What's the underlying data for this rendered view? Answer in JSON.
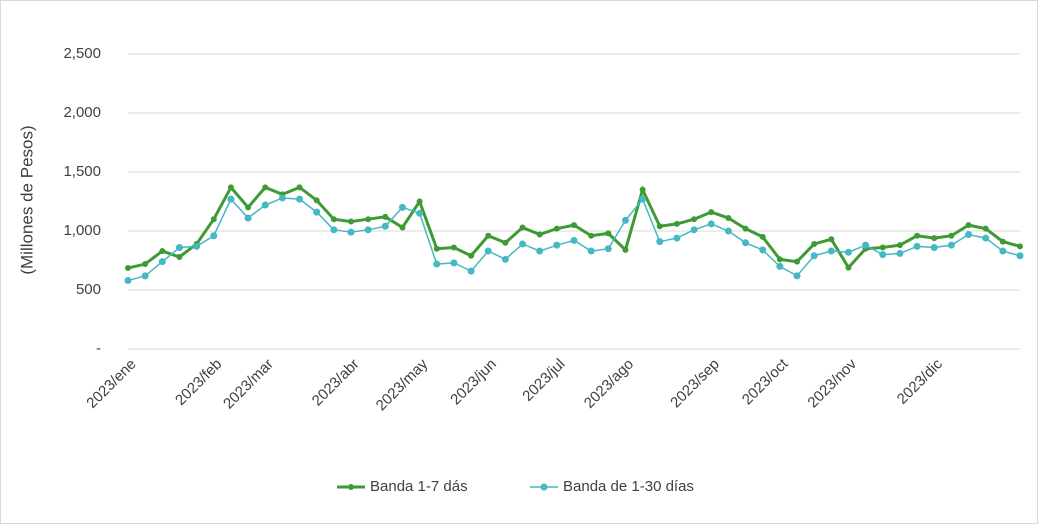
{
  "chart_data": {
    "type": "line",
    "y_label": "(Millones de Pesos)",
    "categories": [
      "2023/ene",
      null,
      null,
      null,
      null,
      "2023/feb",
      null,
      null,
      "2023/mar",
      null,
      null,
      null,
      null,
      "2023/abr",
      null,
      null,
      null,
      "2023/may",
      null,
      null,
      null,
      "2023/jun",
      null,
      null,
      null,
      "2023/jul",
      null,
      null,
      null,
      "2023/ago",
      null,
      null,
      null,
      null,
      "2023/sep",
      null,
      null,
      null,
      "2023/oct",
      null,
      null,
      null,
      "2023/nov",
      null,
      null,
      null,
      null,
      "2023/dic",
      null,
      null,
      null,
      null,
      null
    ],
    "series": [
      {
        "name": "Banda 1-7 dás",
        "color": "#3e9a34",
        "values": [
          686,
          720,
          830,
          780,
          890,
          1100,
          1370,
          1200,
          1370,
          1310,
          1370,
          1260,
          1100,
          1080,
          1100,
          1120,
          1030,
          1250,
          850,
          860,
          790,
          960,
          900,
          1030,
          970,
          1020,
          1050,
          960,
          980,
          840,
          1350,
          1040,
          1060,
          1100,
          1160,
          1110,
          1020,
          950,
          760,
          740,
          890,
          930,
          690,
          850,
          860,
          880,
          960,
          940,
          960,
          1050,
          1020,
          910,
          870
        ]
      },
      {
        "name": "Banda de 1-30 días",
        "color": "#45b8c4",
        "values": [
          580,
          620,
          740,
          860,
          870,
          960,
          1270,
          1110,
          1220,
          1280,
          1270,
          1160,
          1010,
          990,
          1010,
          1040,
          1200,
          1150,
          720,
          730,
          660,
          830,
          760,
          890,
          830,
          880,
          920,
          830,
          850,
          1090,
          1270,
          910,
          940,
          1010,
          1060,
          1000,
          900,
          840,
          700,
          620,
          790,
          830,
          820,
          880,
          800,
          810,
          870,
          860,
          880,
          970,
          940,
          830,
          790
        ]
      }
    ],
    "ylim": [
      0,
      2500
    ],
    "yticks": [
      {
        "value": 0,
        "label": "-"
      },
      500,
      {
        "value": 1000,
        "label": "1,000"
      },
      {
        "value": 1500,
        "label": "1,500"
      },
      {
        "value": 2000,
        "label": "2,000"
      },
      {
        "value": 2500,
        "label": "2,500"
      }
    ],
    "grid": true,
    "legend": "bottom"
  }
}
